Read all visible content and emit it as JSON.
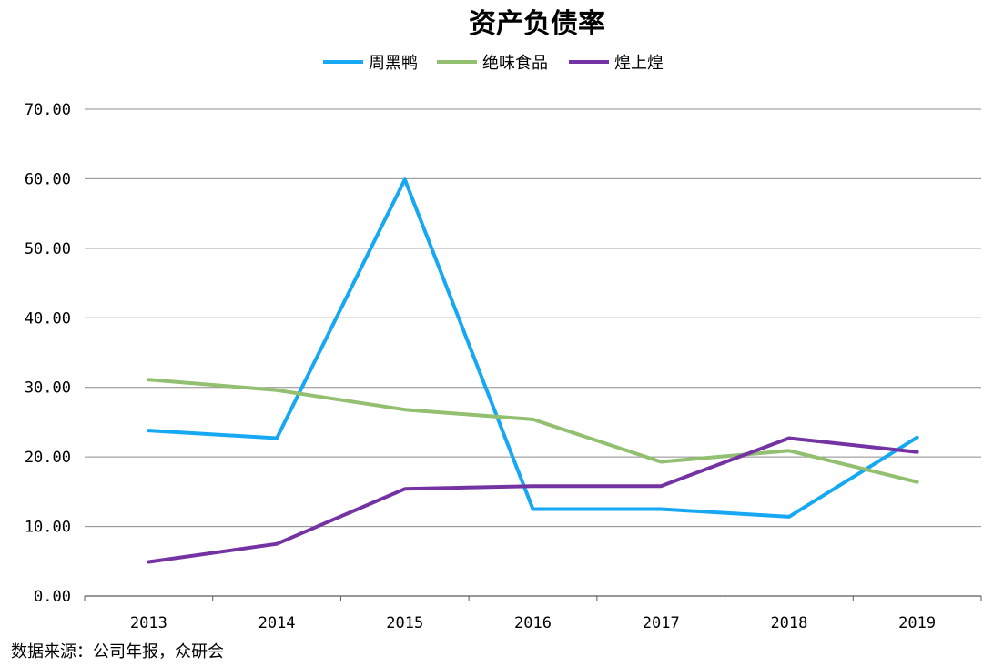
{
  "chart_data": {
    "type": "line",
    "title": "资产负债率",
    "categories": [
      "2013",
      "2014",
      "2015",
      "2016",
      "2017",
      "2018",
      "2019"
    ],
    "y_tick_labels": [
      "0.00",
      "10.00",
      "20.00",
      "30.00",
      "40.00",
      "50.00",
      "60.00",
      "70.00"
    ],
    "ylim": [
      0,
      70
    ],
    "grid": true,
    "legend_position": "top-center",
    "series": [
      {
        "name": "周黑鸭",
        "color": "#16a8f2",
        "values": [
          23.8,
          22.7,
          59.9,
          12.5,
          12.5,
          11.4,
          22.8
        ]
      },
      {
        "name": "绝味食品",
        "color": "#93bf71",
        "values": [
          31.1,
          29.6,
          26.8,
          25.4,
          19.3,
          20.9,
          16.4
        ]
      },
      {
        "name": "煌上煌",
        "color": "#7433a3",
        "values": [
          4.9,
          7.5,
          15.4,
          15.8,
          15.8,
          22.7,
          20.7
        ]
      }
    ]
  },
  "source_note": "数据来源：公司年报，众研会"
}
